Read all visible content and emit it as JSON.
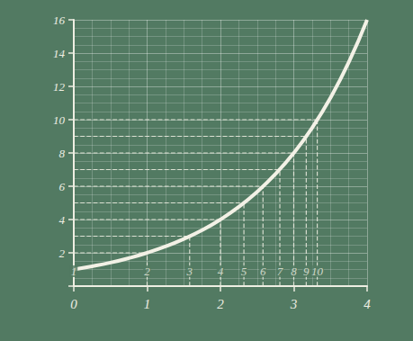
{
  "chart_data": {
    "type": "line",
    "x": [
      0,
      0.25,
      0.5,
      0.75,
      1,
      1.25,
      1.5,
      1.75,
      2,
      2.25,
      2.5,
      2.75,
      3,
      3.25,
      3.5,
      3.75,
      4
    ],
    "values": [
      1,
      1.19,
      1.41,
      1.68,
      2,
      2.38,
      2.83,
      3.36,
      4,
      4.76,
      5.66,
      6.73,
      8,
      9.51,
      11.31,
      13.45,
      16
    ],
    "color": "#f3f1e6",
    "xlim": [
      0,
      4
    ],
    "ylim": [
      0,
      16
    ],
    "xticks": [
      0,
      1,
      2,
      3,
      4
    ],
    "yticks": [
      2,
      4,
      6,
      8,
      10,
      12,
      14,
      16
    ],
    "grid": true,
    "annotations": {
      "x": [
        0,
        1,
        1.58,
        2,
        2.32,
        2.58,
        2.81,
        3,
        3.17,
        3.32
      ],
      "y": [
        1,
        2,
        3,
        4,
        5,
        6,
        7,
        8,
        9,
        10
      ],
      "line_style": "dashed"
    }
  }
}
